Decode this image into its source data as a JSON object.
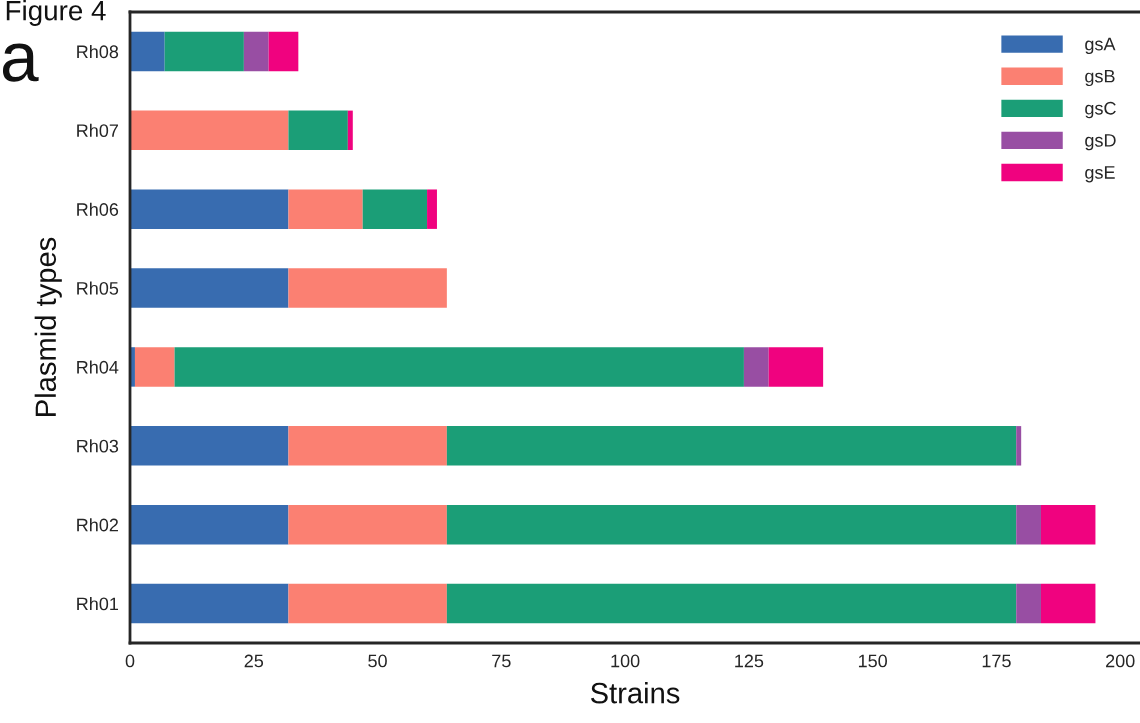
{
  "chart_data": {
    "type": "bar",
    "orientation": "horizontal",
    "stacked": true,
    "xlabel": "Strains",
    "ylabel": "Plasmid types",
    "annotations": [
      "Figure 4",
      "a"
    ],
    "categories": [
      "Rh08",
      "Rh07",
      "Rh06",
      "Rh05",
      "Rh04",
      "Rh03",
      "Rh02",
      "Rh01"
    ],
    "series": [
      {
        "name": "gsA",
        "color": "#386cb0",
        "values": [
          7,
          0,
          32,
          32,
          1,
          32,
          32,
          32
        ]
      },
      {
        "name": "gsB",
        "color": "#fb8072",
        "values": [
          0,
          32,
          15,
          32,
          8,
          32,
          32,
          32
        ]
      },
      {
        "name": "gsC",
        "color": "#1b9e77",
        "values": [
          16,
          12,
          13,
          0,
          115,
          115,
          115,
          115
        ]
      },
      {
        "name": "gsD",
        "color": "#984ea3",
        "values": [
          5,
          0,
          0,
          0,
          5,
          1,
          5,
          5
        ]
      },
      {
        "name": "gsE",
        "color": "#f0027f",
        "values": [
          6,
          1,
          2,
          0,
          11,
          0,
          11,
          11
        ]
      }
    ],
    "xlim": [
      0,
      204
    ],
    "xticks": [
      0,
      25,
      50,
      75,
      100,
      125,
      150,
      175,
      200
    ],
    "grid": false,
    "legend": "top right"
  }
}
